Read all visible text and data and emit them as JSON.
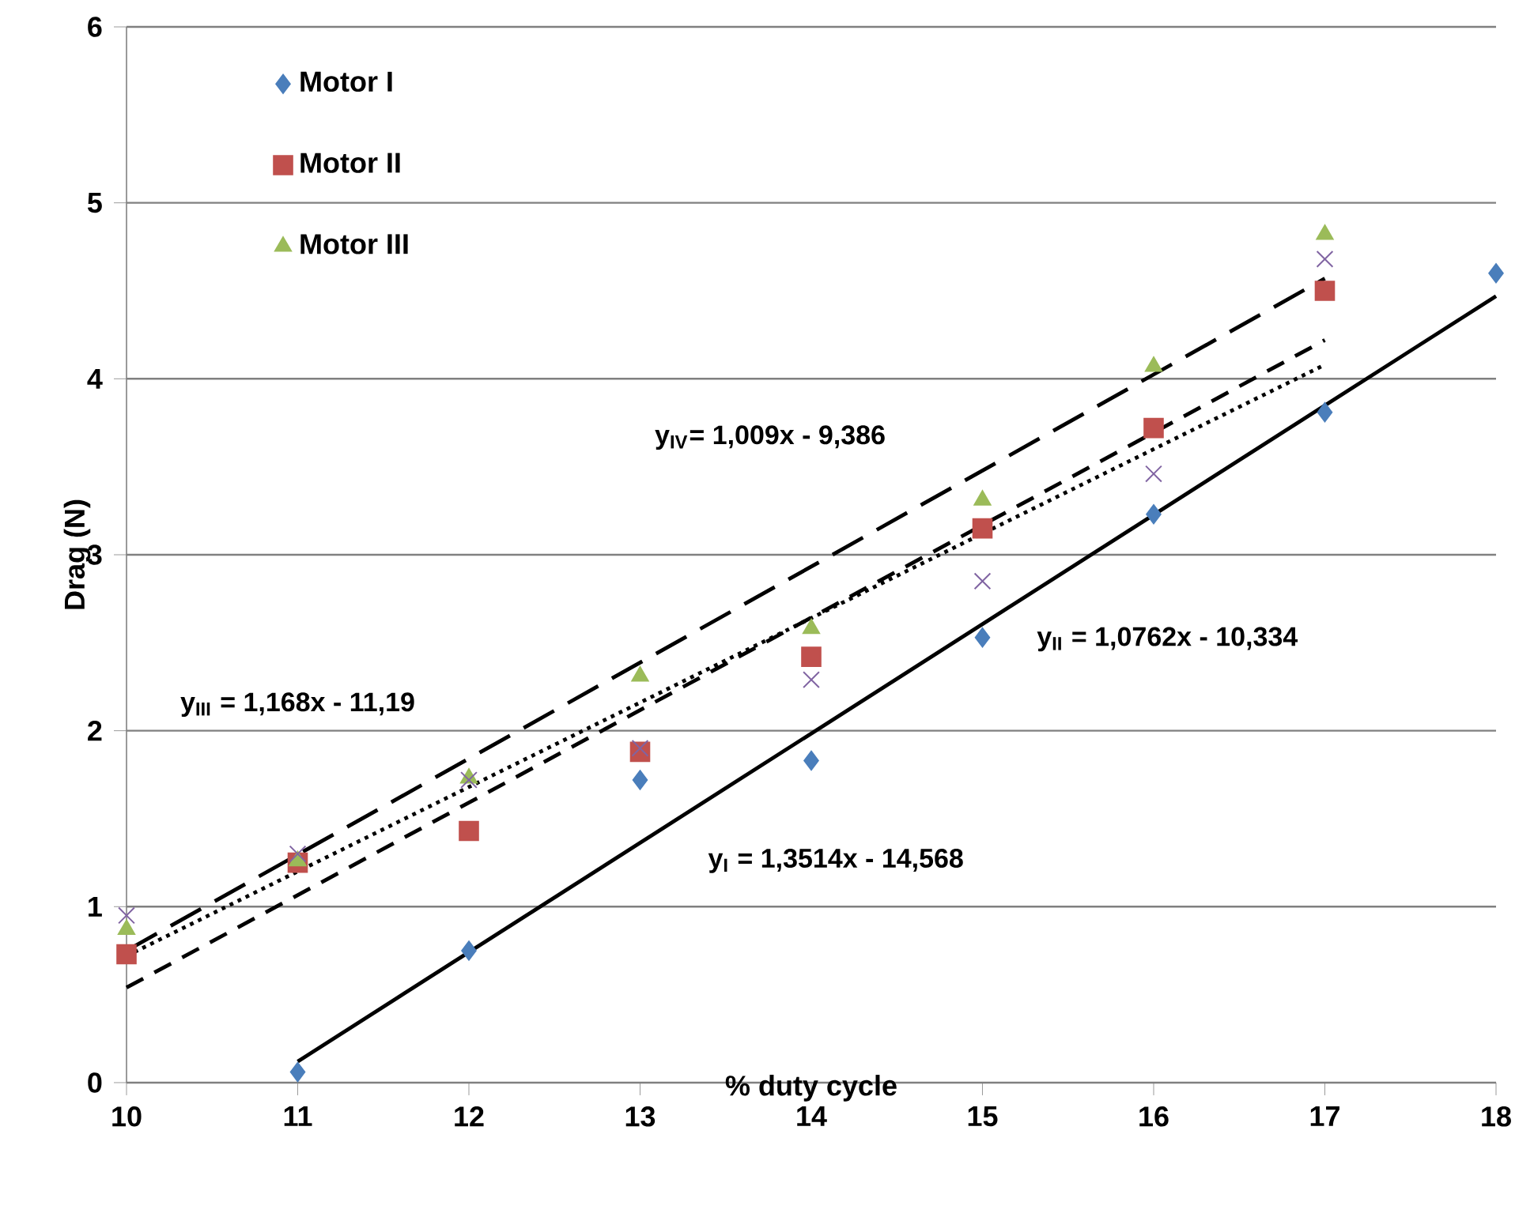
{
  "chart_data": {
    "type": "scatter",
    "xlabel": "% duty cycle",
    "ylabel": "Drag (N)",
    "xlim": [
      10,
      18
    ],
    "ylim": [
      0,
      6
    ],
    "xticks": [
      10,
      11,
      12,
      13,
      14,
      15,
      16,
      17,
      18
    ],
    "yticks": [
      0,
      1,
      2,
      3,
      4,
      5,
      6
    ],
    "grid": "y",
    "legend": "top left",
    "series": [
      {
        "name": "Motor I",
        "marker": "diamond",
        "color": "#4a7ebb",
        "x": [
          11,
          12,
          13,
          14,
          15,
          16,
          17,
          18
        ],
        "values": [
          0.06,
          0.75,
          1.72,
          1.83,
          2.53,
          3.23,
          3.81,
          4.6
        ]
      },
      {
        "name": "Motor II",
        "marker": "square",
        "color": "#c0504d",
        "x": [
          10,
          11,
          12,
          13,
          14,
          15,
          16,
          17
        ],
        "values": [
          0.73,
          1.25,
          1.43,
          1.88,
          2.42,
          3.15,
          3.72,
          4.5
        ]
      },
      {
        "name": "Motor III",
        "marker": "triangle",
        "color": "#9bbb59",
        "x": [
          10,
          11,
          12,
          13,
          14,
          15,
          16,
          17
        ],
        "values": [
          0.87,
          1.26,
          1.73,
          2.31,
          2.58,
          3.31,
          4.07,
          4.82
        ]
      },
      {
        "marker": "cross",
        "color": "#8064a2",
        "x": [
          10,
          11,
          12,
          13,
          14,
          15,
          16,
          17
        ],
        "values": [
          0.95,
          1.3,
          1.72,
          1.9,
          2.29,
          2.85,
          3.46,
          4.68
        ]
      },
      {
        "type": "line",
        "line_style": "solid",
        "color": "#000000",
        "x": [
          11,
          18
        ],
        "values": [
          0.12,
          4.47
        ]
      },
      {
        "type": "line",
        "line_style": "dashed",
        "color": "#000000",
        "x": [
          10,
          17
        ],
        "values": [
          0.54,
          4.22
        ]
      },
      {
        "type": "line",
        "line_style": "longdashed",
        "color": "#000000",
        "x": [
          10,
          17
        ],
        "values": [
          0.75,
          4.57
        ]
      },
      {
        "type": "line",
        "line_style": "dotted",
        "color": "#000000",
        "x": [
          10,
          17
        ],
        "values": [
          0.72,
          4.08
        ]
      }
    ],
    "annotations": [
      "y$_{I}$ = 1,3514x - 14,568",
      "y$_{II}$ = 1,0762x - 10,334",
      "y$_{III}$ = 1,168x - 11,19",
      "y$_{IV}$= 1,009x - 9,386"
    ]
  }
}
